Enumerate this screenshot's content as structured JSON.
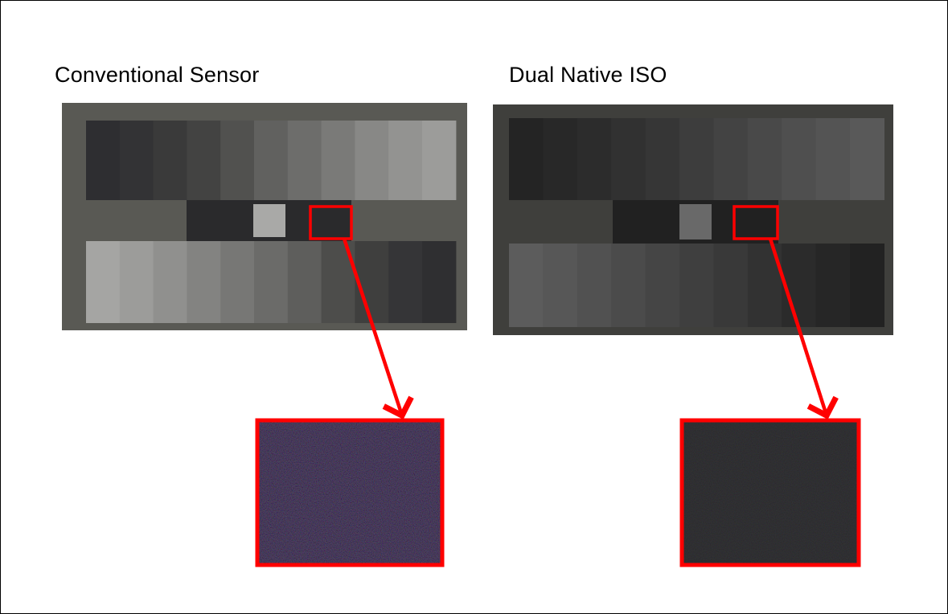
{
  "panels": [
    {
      "title": "Conventional Sensor",
      "chart_background": "#595954",
      "top_patches": [
        "#2e2e31",
        "#333335",
        "#3a3a3a",
        "#434342",
        "#51514f",
        "#61615f",
        "#6d6d6b",
        "#7a7a78",
        "#888886",
        "#939391",
        "#9c9c9a"
      ],
      "bottom_patches": [
        "#a5a5a3",
        "#9c9c9a",
        "#90908e",
        "#838381",
        "#777775",
        "#6b6b69",
        "#5e5e5c",
        "#4d4d4b",
        "#3f3f3e",
        "#353537",
        "#2f2f31"
      ],
      "middle_dark": "#2a2a2c",
      "middle_light": "#a9a9a7",
      "zoom_fill": "#232227"
    },
    {
      "title": "Dual Native ISO",
      "chart_background": "#3f3f3c",
      "top_patches": [
        "#242424",
        "#282828",
        "#2c2c2c",
        "#313131",
        "#363636",
        "#3d3d3d",
        "#434343",
        "#494949",
        "#4f4f4f",
        "#545454",
        "#595959"
      ],
      "bottom_patches": [
        "#5c5c5c",
        "#575757",
        "#515151",
        "#4b4b4b",
        "#454545",
        "#3f3f3f",
        "#393939",
        "#323232",
        "#2b2b2b",
        "#262626",
        "#222222"
      ],
      "middle_dark": "#212121",
      "middle_light": "#696969",
      "zoom_fill": "#232324"
    }
  ],
  "highlight_color": "#ff0000"
}
